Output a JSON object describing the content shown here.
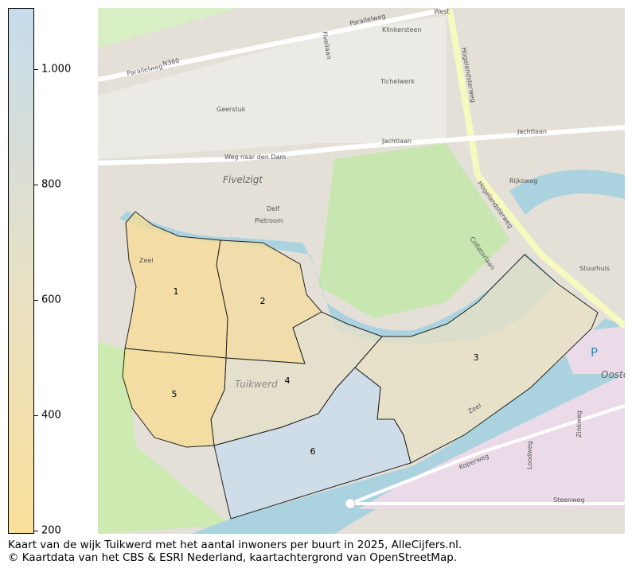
{
  "legend": {
    "colormap_top": "#c6dcec",
    "colormap_mid": "#e6e0c6",
    "colormap_bottom": "#fae09a",
    "range": [
      194,
      1106
    ],
    "ticks": [
      {
        "value": 200,
        "label": "200"
      },
      {
        "value": 400,
        "label": "400"
      },
      {
        "value": 600,
        "label": "600"
      },
      {
        "value": 800,
        "label": "800"
      },
      {
        "value": 1000,
        "label": "1.000"
      }
    ]
  },
  "map": {
    "neighbourhoods": [
      {
        "label": "1",
        "value": 260,
        "color": "#f7dc96"
      },
      {
        "label": "2",
        "value": 330,
        "color": "#f4dc9e"
      },
      {
        "label": "3",
        "value": 620,
        "color": "#e8e2c4"
      },
      {
        "label": "4",
        "value": 640,
        "color": "#e6e0c8"
      },
      {
        "label": "5",
        "value": 250,
        "color": "#f8dc94"
      },
      {
        "label": "6",
        "value": 1000,
        "color": "#c8dcea"
      }
    ],
    "place_labels": [
      "Fivelzigt",
      "Tuikwerd",
      "Ooste",
      "P"
    ],
    "street_labels": [
      "Parallelweg",
      "Parallelweg",
      "N360",
      "West",
      "Jachtlaan",
      "Jachtlaan",
      "Hogelandsterweg",
      "Hogelandsterweg",
      "Weg naar den Dam",
      "Fivellaan",
      "Zeel",
      "Zeel",
      "Koperweg",
      "Steenweg",
      "Zinkweg",
      "Loodweg",
      "Rijksweg",
      "Stuurhuis",
      "Collatorlaan",
      "Tichelwerk",
      "Klinkersteen",
      "Geerstuk",
      "Delf",
      "Pietroom"
    ]
  },
  "caption": {
    "line1": "Kaart van de wijk Tuikwerd met het aantal inwoners per buurt in 2025, AlleCijfers.nl.",
    "line2": "© Kaartdata van het CBS & ESRI Nederland, kaartachtergrond van OpenStreetMap."
  }
}
